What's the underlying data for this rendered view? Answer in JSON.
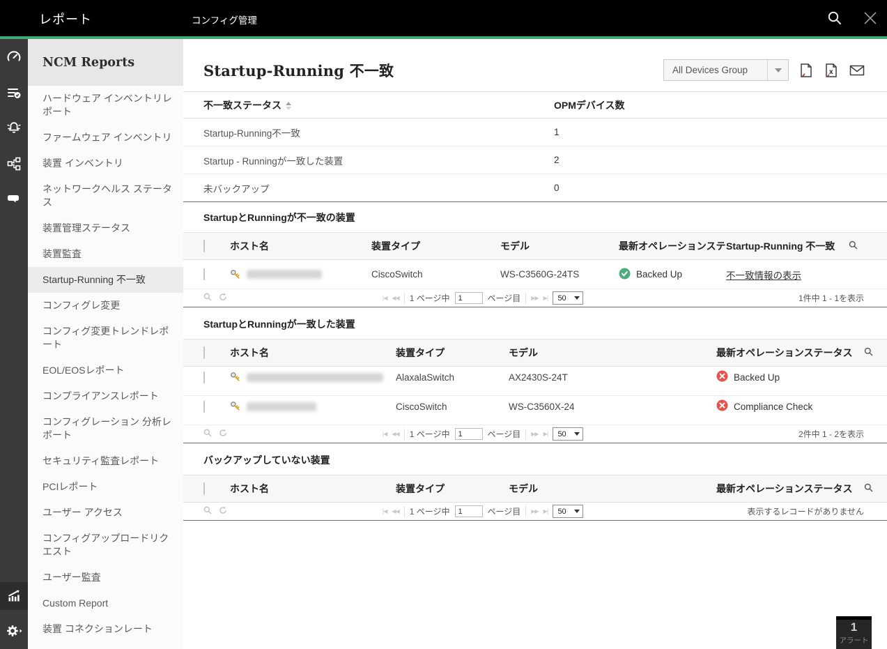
{
  "colors": {
    "accent_green": "#3fa873",
    "status_green": "#4cae7e",
    "status_red": "#e8504d",
    "key_gold": "#d9a21b",
    "topbar_black": "#000000",
    "rail_gray": "#3a3a3c"
  },
  "topbar": {
    "brand": "レポート",
    "tab": "コンフィグ管理"
  },
  "rail": {
    "icons": [
      "dashboard",
      "inventory-check",
      "alarm-bell",
      "topology",
      "chat",
      "reports-chart",
      "settings-gear"
    ]
  },
  "sidebar": {
    "title": "NCM Reports",
    "items": [
      {
        "label": "ハードウェア インベントリレポート",
        "active": false
      },
      {
        "label": "ファームウェア インベントリ",
        "active": false
      },
      {
        "label": "装置 インベントリ",
        "active": false
      },
      {
        "label": "ネットワークヘルス ステータス",
        "active": false
      },
      {
        "label": "装置管理ステータス",
        "active": false
      },
      {
        "label": "装置監査",
        "active": false
      },
      {
        "label": "Startup-Running 不一致",
        "active": true
      },
      {
        "label": "コンフィグレ変更",
        "active": false
      },
      {
        "label": "コンフィグ変更トレンドレポート",
        "active": false
      },
      {
        "label": "EOL/EOSレポート",
        "active": false
      },
      {
        "label": "コンプライアンスレポート",
        "active": false
      },
      {
        "label": "コンフィグレーション 分析レポート",
        "active": false
      },
      {
        "label": "セキュリティ監査レポート",
        "active": false
      },
      {
        "label": "PCIレポート",
        "active": false
      },
      {
        "label": "ユーザー アクセス",
        "active": false
      },
      {
        "label": "コンフィグアップロードリクエスト",
        "active": false
      },
      {
        "label": "ユーザー監査",
        "active": false
      },
      {
        "label": "Custom Report",
        "active": false
      },
      {
        "label": "装置 コネクションレート",
        "active": false
      }
    ]
  },
  "content": {
    "title": "Startup-Running 不一致",
    "group_select_value": "All Devices Group",
    "export_icons": [
      "pdf-export",
      "excel-export",
      "email-report"
    ],
    "summary": {
      "col1": "不一致ステータス",
      "col2": "OPMデバイス数",
      "rows": [
        {
          "label": "Startup-Running不一致",
          "value": "1"
        },
        {
          "label": "Startup - Runningが一致した装置",
          "value": "2"
        },
        {
          "label": "未バックアップ",
          "value": "0"
        }
      ]
    },
    "sections": [
      {
        "title": "StartupとRunningが不一致の装置",
        "variant": "mismatch",
        "columns": [
          "ホスト名",
          "装置タイプ",
          "モデル",
          "最新オペレーションステータス",
          "Startup-Running 不一致"
        ],
        "rows": [
          {
            "host_masked": true,
            "host_blur_width": 108,
            "device_type": "CiscoSwitch",
            "model": "WS-C3560G-24TS",
            "status": "Backed Up",
            "status_state": "ok",
            "action": "不一致情報の表示"
          }
        ],
        "pagination": {
          "page_prefix": "1 ページ中",
          "page_value": "1",
          "page_suffix": "ページ目",
          "page_size": "50",
          "summary": "1件中 1 - 1を表示"
        }
      },
      {
        "title": "StartupとRunningが一致した装置",
        "variant": "standard",
        "columns": [
          "ホスト名",
          "装置タイプ",
          "モデル",
          "最新オペレーションステータス"
        ],
        "rows": [
          {
            "host_masked": true,
            "host_blur_width": 196,
            "device_type": "AlaxalaSwitch",
            "model": "AX2430S-24T",
            "status": "Backed Up",
            "status_state": "error"
          },
          {
            "host_masked": true,
            "host_blur_width": 100,
            "device_type": "CiscoSwitch",
            "model": "WS-C3560X-24",
            "status": "Compliance Check",
            "status_state": "error"
          }
        ],
        "pagination": {
          "page_prefix": "1 ページ中",
          "page_value": "1",
          "page_suffix": "ページ目",
          "page_size": "50",
          "summary": "2件中 1 - 2を表示"
        }
      },
      {
        "title": "バックアップしていない装置",
        "variant": "standard",
        "columns": [
          "ホスト名",
          "装置タイプ",
          "モデル",
          "最新オペレーションステータス"
        ],
        "rows": [],
        "pagination": {
          "page_prefix": "1 ページ中",
          "page_value": "1",
          "page_suffix": "ページ目",
          "page_size": "50",
          "summary": "表示するレコードがありません"
        }
      }
    ],
    "pagination_glyphs": {
      "first": "|◀",
      "prev": "◀◀",
      "next": "▶▶",
      "last": "▶|"
    }
  },
  "alert_badge": {
    "count": "1",
    "label": "アラート"
  }
}
